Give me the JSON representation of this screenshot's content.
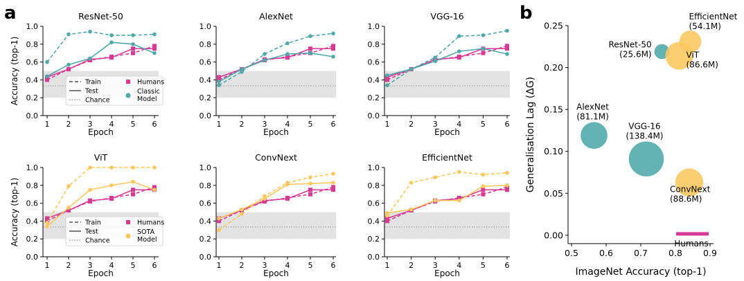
{
  "panel_labels": {
    "a": "a",
    "b": "b"
  },
  "colors": {
    "humans": "#d63a95",
    "classic": "#4fa8aa",
    "sota": "#fcc75e",
    "chance_band": "#e3e3e3",
    "chance_line": "#999999"
  },
  "legends": [
    {
      "train": "Train",
      "test": "Test",
      "chance": "Chance",
      "humans": "Humans",
      "model": "Classic\nModel",
      "model_series": "classic"
    },
    {
      "train": "Train",
      "test": "Test",
      "chance": "Chance",
      "humans": "Humans",
      "model": "SOTA\nModel",
      "model_series": "sota"
    }
  ],
  "chart_data": [
    {
      "type": "line",
      "title": "ResNet-50",
      "model_color": "classic",
      "xlabel": "Epoch",
      "ylabel": "Accuracy (top-1)",
      "x": [
        1,
        2,
        3,
        4,
        5,
        6
      ],
      "xticks": [
        "1",
        "2",
        "3",
        "4",
        "5",
        "6"
      ],
      "ylim": [
        0,
        1
      ],
      "yticks": [
        "0.0",
        "0.2",
        "0.4",
        "0.6",
        "0.8",
        "1.0"
      ],
      "chance_band": [
        0.2,
        0.5
      ],
      "chance_level": 0.333,
      "series": [
        {
          "role": "model",
          "split": "train",
          "values": [
            0.6,
            0.91,
            0.94,
            0.9,
            0.9,
            0.91
          ]
        },
        {
          "role": "model",
          "split": "test",
          "values": [
            0.44,
            0.57,
            0.64,
            0.82,
            0.8,
            0.7
          ]
        },
        {
          "role": "humans",
          "split": "train",
          "values": [
            0.4,
            0.52,
            0.62,
            0.66,
            0.7,
            0.78
          ]
        },
        {
          "role": "humans",
          "split": "test",
          "values": [
            0.43,
            0.52,
            0.63,
            0.65,
            0.75,
            0.75
          ]
        }
      ]
    },
    {
      "type": "line",
      "title": "AlexNet",
      "model_color": "classic",
      "xlabel": "Epoch",
      "ylabel": "",
      "x": [
        1,
        2,
        3,
        4,
        5,
        6
      ],
      "xticks": [
        "1",
        "2",
        "3",
        "4",
        "5",
        "6"
      ],
      "ylim": [
        0,
        1
      ],
      "yticks": [
        "0.0",
        "0.2",
        "0.4",
        "0.6",
        "0.8",
        "1.0"
      ],
      "chance_band": [
        0.2,
        0.5
      ],
      "chance_level": 0.333,
      "series": [
        {
          "role": "model",
          "split": "train",
          "values": [
            0.34,
            0.49,
            0.69,
            0.81,
            0.89,
            0.92
          ]
        },
        {
          "role": "model",
          "split": "test",
          "values": [
            0.38,
            0.52,
            0.62,
            0.69,
            0.7,
            0.66
          ]
        },
        {
          "role": "humans",
          "split": "train",
          "values": [
            0.4,
            0.52,
            0.62,
            0.66,
            0.7,
            0.78
          ]
        },
        {
          "role": "humans",
          "split": "test",
          "values": [
            0.43,
            0.52,
            0.63,
            0.65,
            0.75,
            0.75
          ]
        }
      ]
    },
    {
      "type": "line",
      "title": "VGG-16",
      "model_color": "classic",
      "xlabel": "Epoch",
      "ylabel": "",
      "x": [
        1,
        2,
        3,
        4,
        5,
        6
      ],
      "xticks": [
        "1",
        "2",
        "3",
        "4",
        "5",
        "6"
      ],
      "ylim": [
        0,
        1
      ],
      "yticks": [
        "0.0",
        "0.2",
        "0.4",
        "0.6",
        "0.8",
        "1.0"
      ],
      "chance_band": [
        0.2,
        0.5
      ],
      "chance_level": 0.333,
      "series": [
        {
          "role": "model",
          "split": "train",
          "values": [
            0.34,
            0.52,
            0.65,
            0.89,
            0.9,
            0.95
          ]
        },
        {
          "role": "model",
          "split": "test",
          "values": [
            0.45,
            0.52,
            0.61,
            0.72,
            0.75,
            0.69
          ]
        },
        {
          "role": "humans",
          "split": "train",
          "values": [
            0.4,
            0.52,
            0.62,
            0.66,
            0.7,
            0.78
          ]
        },
        {
          "role": "humans",
          "split": "test",
          "values": [
            0.43,
            0.52,
            0.63,
            0.65,
            0.75,
            0.75
          ]
        }
      ]
    },
    {
      "type": "line",
      "title": "ViT",
      "model_color": "sota",
      "xlabel": "Epoch",
      "ylabel": "Accuracy (top-1)",
      "x": [
        1,
        2,
        3,
        4,
        5,
        6
      ],
      "xticks": [
        "1",
        "2",
        "3",
        "4",
        "5",
        "6"
      ],
      "ylim": [
        0,
        1
      ],
      "yticks": [
        "0.0",
        "0.2",
        "0.4",
        "0.6",
        "0.8",
        "1.0"
      ],
      "chance_band": [
        0.2,
        0.5
      ],
      "chance_level": 0.333,
      "series": [
        {
          "role": "model",
          "split": "train",
          "values": [
            0.38,
            0.79,
            1.0,
            1.0,
            1.0,
            1.0
          ]
        },
        {
          "role": "model",
          "split": "test",
          "values": [
            0.34,
            0.55,
            0.75,
            0.8,
            0.84,
            0.75
          ]
        },
        {
          "role": "humans",
          "split": "train",
          "values": [
            0.4,
            0.52,
            0.62,
            0.66,
            0.7,
            0.78
          ]
        },
        {
          "role": "humans",
          "split": "test",
          "values": [
            0.43,
            0.52,
            0.63,
            0.65,
            0.75,
            0.75
          ]
        }
      ]
    },
    {
      "type": "line",
      "title": "ConvNext",
      "model_color": "sota",
      "xlabel": "Epoch",
      "ylabel": "",
      "x": [
        1,
        2,
        3,
        4,
        5,
        6
      ],
      "xticks": [
        "1",
        "2",
        "3",
        "4",
        "5",
        "6"
      ],
      "ylim": [
        0,
        1
      ],
      "yticks": [
        "0.0",
        "0.2",
        "0.4",
        "0.6",
        "0.8",
        "1.0"
      ],
      "chance_band": [
        0.2,
        0.5
      ],
      "chance_level": 0.333,
      "series": [
        {
          "role": "model",
          "split": "train",
          "values": [
            0.3,
            0.48,
            0.68,
            0.83,
            0.89,
            0.93
          ]
        },
        {
          "role": "model",
          "split": "test",
          "values": [
            0.43,
            0.53,
            0.65,
            0.81,
            0.82,
            0.83
          ]
        },
        {
          "role": "humans",
          "split": "train",
          "values": [
            0.4,
            0.52,
            0.62,
            0.66,
            0.7,
            0.78
          ]
        },
        {
          "role": "humans",
          "split": "test",
          "values": [
            0.43,
            0.52,
            0.63,
            0.65,
            0.75,
            0.75
          ]
        }
      ]
    },
    {
      "type": "line",
      "title": "EfficientNet",
      "model_color": "sota",
      "xlabel": "Epoch",
      "ylabel": "",
      "x": [
        1,
        2,
        3,
        4,
        5,
        6
      ],
      "xticks": [
        "1",
        "2",
        "3",
        "4",
        "5",
        "6"
      ],
      "ylim": [
        0,
        1
      ],
      "yticks": [
        "0.0",
        "0.2",
        "0.4",
        "0.6",
        "0.8",
        "1.0"
      ],
      "chance_band": [
        0.2,
        0.5
      ],
      "chance_level": 0.333,
      "series": [
        {
          "role": "model",
          "split": "train",
          "values": [
            0.46,
            0.83,
            0.89,
            0.95,
            0.92,
            0.94
          ]
        },
        {
          "role": "model",
          "split": "test",
          "values": [
            0.49,
            0.53,
            0.63,
            0.63,
            0.79,
            0.8
          ]
        },
        {
          "role": "humans",
          "split": "train",
          "values": [
            0.4,
            0.52,
            0.62,
            0.66,
            0.7,
            0.78
          ]
        },
        {
          "role": "humans",
          "split": "test",
          "values": [
            0.43,
            0.52,
            0.63,
            0.65,
            0.75,
            0.75
          ]
        }
      ]
    },
    {
      "type": "scatter",
      "xlabel": "ImageNet Accuracy (top-1)",
      "ylabel": "Generalisation Lag (ΔG)",
      "xlim": [
        0.5,
        0.9
      ],
      "ylim": [
        -0.01,
        0.25
      ],
      "xticks": [
        "0.5",
        "0.6",
        "0.7",
        "0.8",
        "0.9"
      ],
      "yticks": [
        "0.00",
        "0.05",
        "0.10",
        "0.15",
        "0.20",
        "0.25"
      ],
      "points": [
        {
          "name": "ResNet-50",
          "params": "(25.6M)",
          "params_m": 25.6,
          "x": 0.761,
          "y": 0.219,
          "group": "classic",
          "label_pos": "left"
        },
        {
          "name": "AlexNet",
          "params": "(81.1M)",
          "params_m": 81.1,
          "x": 0.565,
          "y": 0.119,
          "group": "classic",
          "label_pos": "above"
        },
        {
          "name": "VGG-16",
          "params": "(138.4M)",
          "params_m": 138.4,
          "x": 0.716,
          "y": 0.091,
          "group": "classic",
          "label_pos": "above"
        },
        {
          "name": "EfficientNet",
          "params": "(54.1M)",
          "params_m": 54.1,
          "x": 0.843,
          "y": 0.231,
          "group": "sota",
          "label_pos": "above-right"
        },
        {
          "name": "ViT",
          "params": "(86.6M)",
          "params_m": 86.6,
          "x": 0.811,
          "y": 0.214,
          "group": "sota",
          "label_pos": "center-right"
        },
        {
          "name": "ConvNext",
          "params": "(88.6M)",
          "params_m": 88.6,
          "x": 0.84,
          "y": 0.063,
          "group": "sota",
          "label_pos": "below"
        }
      ],
      "humans": {
        "label": "Humans",
        "x_start": 0.8,
        "x_end": 0.9,
        "y": 0.0
      }
    }
  ]
}
